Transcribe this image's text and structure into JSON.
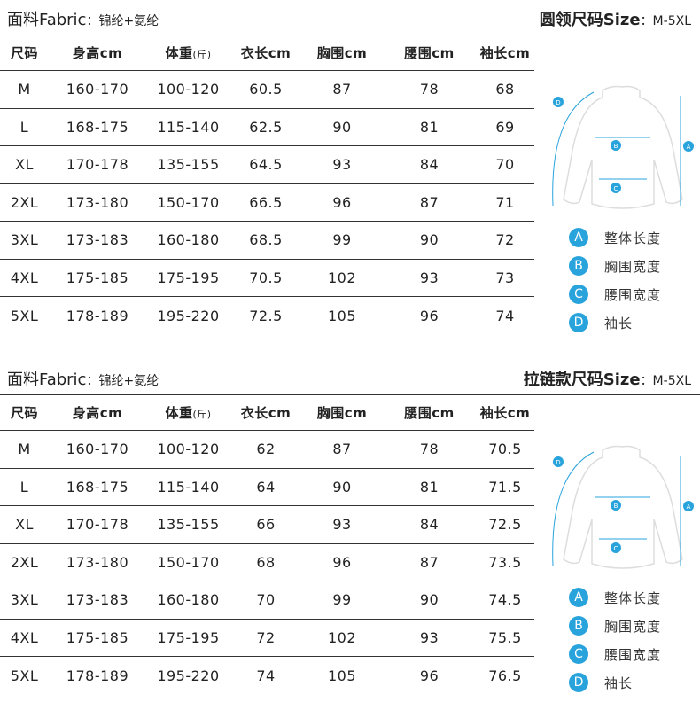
{
  "columns": [
    "尺码",
    "身高cm",
    "体重",
    "衣长cm",
    "胸围cm",
    "腰围cm",
    "袖长cm"
  ],
  "weight_unit": "(斤)",
  "accent": "#29a3dc",
  "legend": [
    {
      "badge": "A",
      "label": "整体长度"
    },
    {
      "badge": "B",
      "label": "胸围宽度"
    },
    {
      "badge": "C",
      "label": "腰围宽度"
    },
    {
      "badge": "D",
      "label": "袖长"
    }
  ],
  "sections": [
    {
      "fabric_label": "面料Fabric",
      "fabric_value": "：锦纶+氨纶",
      "size_label": "圆领尺码Size",
      "size_value": "：M-5XL",
      "rows": [
        [
          "M",
          "160-170",
          "100-120",
          "60.5",
          "87",
          "78",
          "68"
        ],
        [
          "L",
          "168-175",
          "115-140",
          "62.5",
          "90",
          "81",
          "69"
        ],
        [
          "XL",
          "170-178",
          "135-155",
          "64.5",
          "93",
          "84",
          "70"
        ],
        [
          "2XL",
          "173-180",
          "150-170",
          "66.5",
          "96",
          "87",
          "71"
        ],
        [
          "3XL",
          "173-183",
          "160-180",
          "68.5",
          "99",
          "90",
          "72"
        ],
        [
          "4XL",
          "175-185",
          "175-195",
          "70.5",
          "102",
          "93",
          "73"
        ],
        [
          "5XL",
          "178-189",
          "195-220",
          "72.5",
          "105",
          "96",
          "74"
        ]
      ]
    },
    {
      "fabric_label": "面料Fabric",
      "fabric_value": "：锦纶+氨纶",
      "size_label": "拉链款尺码Size",
      "size_value": "：M-5XL",
      "rows": [
        [
          "M",
          "160-170",
          "100-120",
          "62",
          "87",
          "78",
          "70.5"
        ],
        [
          "L",
          "168-175",
          "115-140",
          "64",
          "90",
          "81",
          "71.5"
        ],
        [
          "XL",
          "170-178",
          "135-155",
          "66",
          "93",
          "84",
          "72.5"
        ],
        [
          "2XL",
          "173-180",
          "150-170",
          "68",
          "96",
          "87",
          "73.5"
        ],
        [
          "3XL",
          "173-183",
          "160-180",
          "70",
          "99",
          "90",
          "74.5"
        ],
        [
          "4XL",
          "175-185",
          "175-195",
          "72",
          "102",
          "93",
          "75.5"
        ],
        [
          "5XL",
          "178-189",
          "195-220",
          "74",
          "105",
          "96",
          "76.5"
        ]
      ]
    }
  ]
}
